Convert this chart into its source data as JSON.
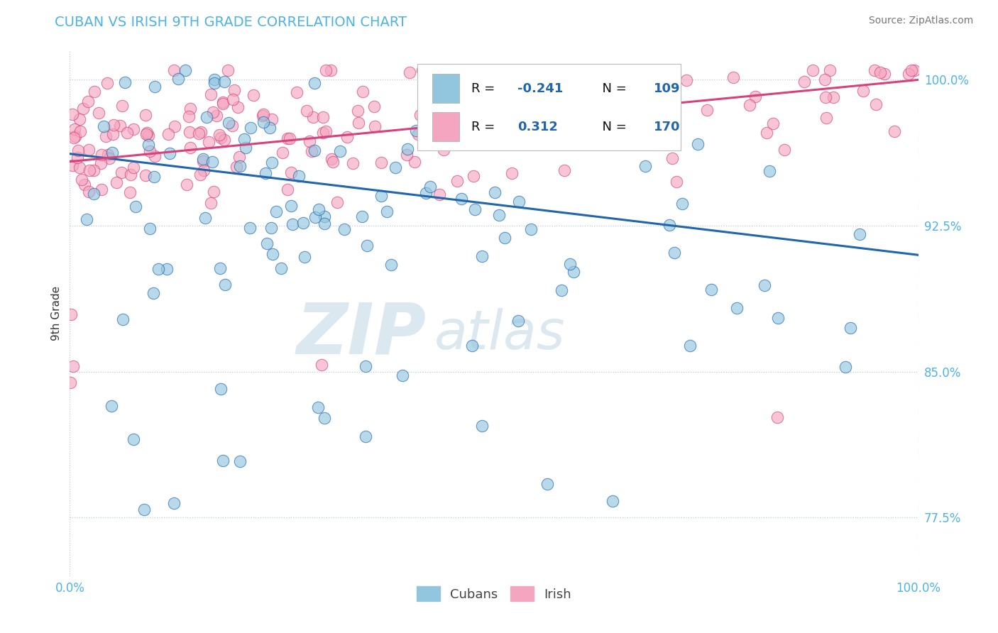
{
  "title": "CUBAN VS IRISH 9TH GRADE CORRELATION CHART",
  "source": "Source: ZipAtlas.com",
  "ylabel": "9th Grade",
  "x_min": 0.0,
  "x_max": 1.0,
  "y_min": 0.745,
  "y_max": 1.015,
  "yticks": [
    0.775,
    0.85,
    0.925,
    1.0
  ],
  "ytick_labels": [
    "77.5%",
    "85.0%",
    "92.5%",
    "100.0%"
  ],
  "cuban_color": "#92c5de",
  "irish_color": "#f4a6c0",
  "cuban_R": -0.241,
  "cuban_N": 109,
  "irish_R": 0.312,
  "irish_N": 170,
  "trend_blue": "#2166ac",
  "trend_pink": "#d6427a",
  "title_color": "#4db3e6",
  "tick_color": "#4db3e6",
  "watermark_text": "ZIPatlas",
  "watermark_color": "#dce8f0",
  "legend_R_color": "#111111",
  "legend_val_color": "#2166ac"
}
